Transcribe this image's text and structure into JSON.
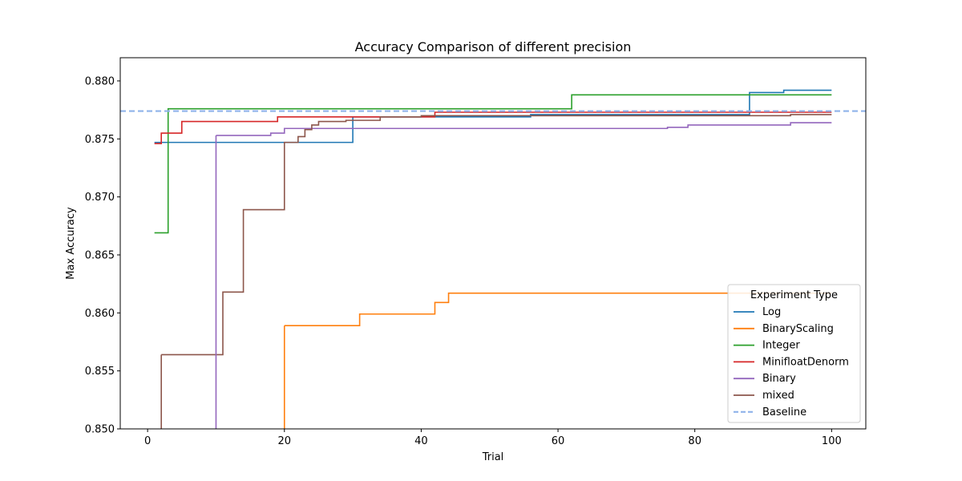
{
  "chart_data": {
    "type": "line",
    "step": "post",
    "title": "Accuracy Comparison of different precision",
    "xlabel": "Trial",
    "ylabel": "Max Accuracy",
    "xlim": [
      -4,
      105
    ],
    "ylim": [
      0.85,
      0.882
    ],
    "xticks": [
      0,
      20,
      40,
      60,
      80,
      100
    ],
    "yticks": [
      0.85,
      0.855,
      0.86,
      0.865,
      0.87,
      0.875,
      0.88
    ],
    "xtick_labels": [
      "0",
      "20",
      "40",
      "60",
      "80",
      "100"
    ],
    "ytick_labels": [
      "0.850",
      "0.855",
      "0.860",
      "0.865",
      "0.870",
      "0.875",
      "0.880"
    ],
    "grid": false,
    "legend": {
      "title": "Experiment Type",
      "placement": "lower-right"
    },
    "series": [
      {
        "name": "Log",
        "color": "#1f77b4",
        "x": [
          1,
          29,
          30,
          55,
          56,
          88,
          93,
          100
        ],
        "y": [
          0.8747,
          0.8747,
          0.8769,
          0.8769,
          0.8771,
          0.879,
          0.8792,
          0.8792
        ]
      },
      {
        "name": "BinaryScaling",
        "color": "#ff7f0e",
        "x": [
          20,
          31,
          42,
          44,
          100
        ],
        "y": [
          0.8589,
          0.8599,
          0.8609,
          0.8617,
          0.8617
        ]
      },
      {
        "name": "Integer",
        "color": "#2ca02c",
        "x": [
          1,
          3,
          62,
          100
        ],
        "y": [
          0.8669,
          0.8776,
          0.8788,
          0.8788
        ]
      },
      {
        "name": "MinifloatDenorm",
        "color": "#d62728",
        "x": [
          1,
          2,
          5,
          19,
          42,
          100
        ],
        "y": [
          0.8746,
          0.8755,
          0.8765,
          0.8769,
          0.8773,
          0.8773
        ]
      },
      {
        "name": "Binary",
        "color": "#9467bd",
        "x": [
          10,
          18,
          20,
          76,
          79,
          94,
          100
        ],
        "y": [
          0.8753,
          0.8755,
          0.8759,
          0.876,
          0.8762,
          0.8764,
          0.8764
        ]
      },
      {
        "name": "mixed",
        "color": "#8c564b",
        "x": [
          2,
          11,
          14,
          20,
          22,
          23,
          24,
          25,
          29,
          34,
          40,
          56,
          94,
          100
        ],
        "y": [
          0.8564,
          0.8618,
          0.8689,
          0.8747,
          0.8752,
          0.8758,
          0.8762,
          0.8765,
          0.8766,
          0.8769,
          0.877,
          0.877,
          0.8771,
          0.8771
        ]
      }
    ],
    "baseline": {
      "name": "Baseline",
      "y": 0.8774,
      "color": "#8fb3ea",
      "style": "dashed"
    }
  }
}
